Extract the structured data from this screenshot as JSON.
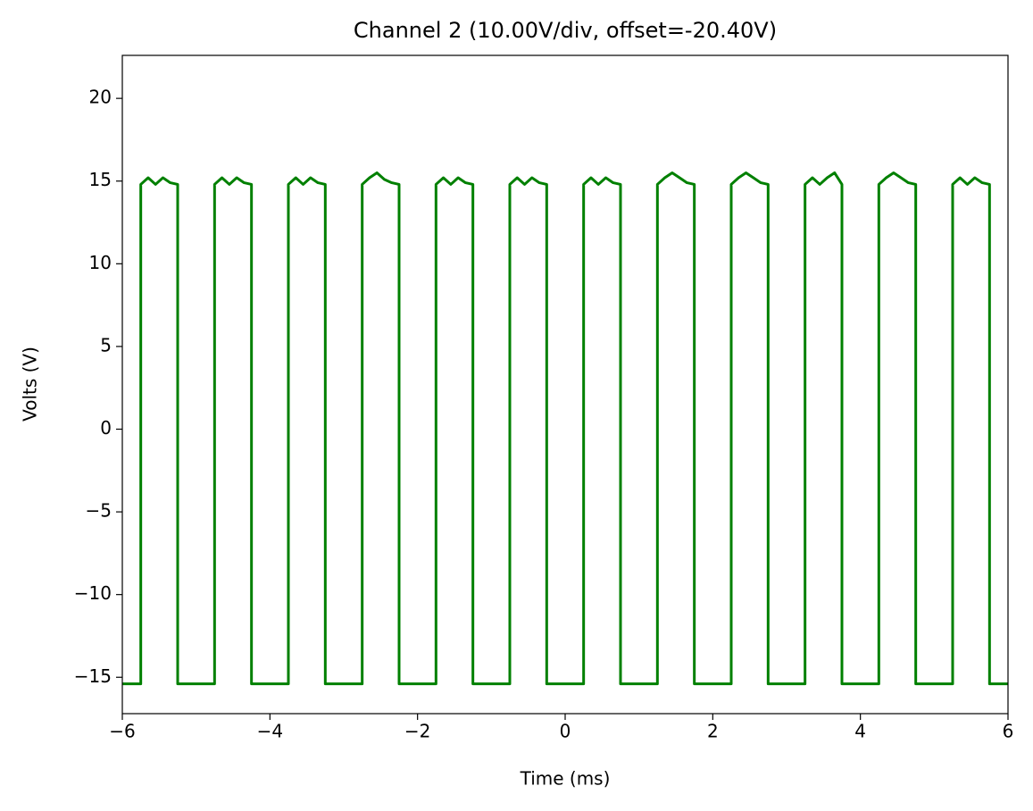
{
  "chart_data": {
    "type": "line",
    "title": "Channel 2 (10.00V/div, offset=-20.40V)",
    "x_label": "Time (ms)",
    "y_label": "Volts (V)",
    "x": [
      -6,
      -5.75,
      -5.75,
      -5.65,
      -5.55,
      -5.45,
      -5.35,
      -5.25,
      -5.25,
      -4.75,
      -4.75,
      -4.65,
      -4.55,
      -4.45,
      -4.35,
      -4.25,
      -4.25,
      -3.75,
      -3.75,
      -3.65,
      -3.55,
      -3.45,
      -3.35,
      -3.25,
      -3.25,
      -2.75,
      -2.75,
      -2.65,
      -2.55,
      -2.45,
      -2.35,
      -2.25,
      -2.25,
      -1.75,
      -1.75,
      -1.65,
      -1.55,
      -1.45,
      -1.35,
      -1.25,
      -1.25,
      -0.75,
      -0.75,
      -0.65,
      -0.55,
      -0.45,
      -0.35,
      -0.25,
      -0.25,
      0.25,
      0.25,
      0.35,
      0.45,
      0.55,
      0.65,
      0.75,
      0.75,
      1.25,
      1.25,
      1.35,
      1.45,
      1.55,
      1.65,
      1.75,
      1.75,
      2.25,
      2.25,
      2.35,
      2.45,
      2.55,
      2.65,
      2.75,
      2.75,
      3.25,
      3.25,
      3.35,
      3.45,
      3.55,
      3.65,
      3.75,
      3.75,
      4.25,
      4.25,
      4.35,
      4.45,
      4.55,
      4.65,
      4.75,
      4.75,
      5.25,
      5.25,
      5.35,
      5.45,
      5.55,
      5.65,
      5.75,
      5.75,
      6
    ],
    "series": [
      {
        "color": "#008000",
        "values": [
          -15.4,
          -15.4,
          14.8,
          15.2,
          14.8,
          15.2,
          14.9,
          14.8,
          -15.4,
          -15.4,
          14.8,
          15.2,
          14.8,
          15.2,
          14.9,
          14.8,
          -15.4,
          -15.4,
          14.8,
          15.2,
          14.8,
          15.2,
          14.9,
          14.8,
          -15.4,
          -15.4,
          14.8,
          15.2,
          15.5,
          15.1,
          14.9,
          14.8,
          -15.4,
          -15.4,
          14.8,
          15.2,
          14.8,
          15.2,
          14.9,
          14.8,
          -15.4,
          -15.4,
          14.8,
          15.2,
          14.8,
          15.2,
          14.9,
          14.8,
          -15.4,
          -15.4,
          14.8,
          15.2,
          14.8,
          15.2,
          14.9,
          14.8,
          -15.4,
          -15.4,
          14.8,
          15.2,
          15.5,
          15.2,
          14.9,
          14.8,
          -15.4,
          -15.4,
          14.8,
          15.2,
          15.5,
          15.2,
          14.9,
          14.8,
          -15.4,
          -15.4,
          14.8,
          15.2,
          14.8,
          15.2,
          15.5,
          14.8,
          -15.4,
          -15.4,
          14.8,
          15.2,
          15.5,
          15.2,
          14.9,
          14.8,
          -15.4,
          -15.4,
          14.8,
          15.2,
          14.8,
          15.2,
          14.9,
          14.8,
          -15.4,
          -15.4
        ]
      }
    ],
    "xlim": [
      -6,
      6
    ],
    "ylim": [
      -17.2,
      22.6
    ],
    "xticks": [
      {
        "value": -6,
        "label": "−6"
      },
      {
        "value": -4,
        "label": "−4"
      },
      {
        "value": -2,
        "label": "−2"
      },
      0,
      2,
      4,
      6
    ],
    "yticks": [
      {
        "value": -15,
        "label": "−15"
      },
      {
        "value": -10,
        "label": "−10"
      },
      {
        "value": -5,
        "label": "−5"
      },
      0,
      5,
      10,
      15,
      20
    ],
    "grid": false
  }
}
